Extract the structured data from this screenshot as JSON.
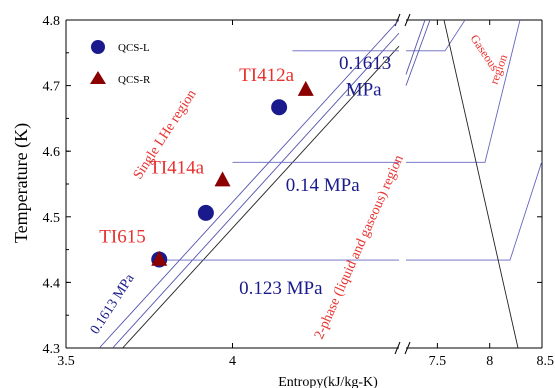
{
  "chart_data": {
    "type": "scatter",
    "title": "",
    "xlabel": "Entropy(kJ/kg-K)",
    "ylabel": "Temperature (K)",
    "ylim": [
      4.3,
      4.8
    ],
    "x_axis_break": {
      "segment_1": [
        3.5,
        4.5
      ],
      "segment_2": [
        7.2,
        8.5
      ]
    },
    "x_tick_labels": [
      "3.5",
      "4",
      "7.5",
      "8",
      "8.5"
    ],
    "x_tick_values": [
      3.5,
      4.0,
      7.5,
      8.0,
      8.5
    ],
    "y_tick_labels": [
      "4.3",
      "4.4",
      "4.5",
      "4.6",
      "4.7",
      "4.8"
    ],
    "y_tick_values": [
      4.3,
      4.4,
      4.5,
      4.6,
      4.7,
      4.8
    ],
    "legend_placement": "top-left",
    "series": [
      {
        "name": "QCS-L",
        "marker": "circle",
        "color": "#1a1a8c",
        "points": [
          [
            3.78,
            4.435
          ],
          [
            3.92,
            4.506
          ],
          [
            4.14,
            4.667
          ]
        ]
      },
      {
        "name": "QCS-R",
        "marker": "triangle",
        "color": "#8b0000",
        "points": [
          [
            3.78,
            4.436
          ],
          [
            3.97,
            4.557
          ],
          [
            4.22,
            4.695
          ]
        ]
      }
    ],
    "point_labels": [
      {
        "text": "TI615",
        "x": 3.6,
        "y": 4.461,
        "color": "#e8312f"
      },
      {
        "text": "TI414a",
        "x": 3.75,
        "y": 4.566,
        "color": "#e8312f"
      },
      {
        "text": "TI412a",
        "x": 4.02,
        "y": 4.707,
        "color": "#e8312f"
      }
    ],
    "isobar_labels": [
      {
        "text": "0.1613",
        "x": 4.32,
        "y": 4.725,
        "color": "#1a1a8c"
      },
      {
        "text": "MPa",
        "x": 4.34,
        "y": 4.685,
        "color": "#1a1a8c"
      },
      {
        "text": "0.14 MPa",
        "x": 4.16,
        "y": 4.539,
        "color": "#1a1a8c"
      },
      {
        "text": "0.123 MPa",
        "x": 4.02,
        "y": 4.382,
        "color": "#1a1a8c"
      }
    ],
    "rotated_labels": [
      {
        "text": "Single LHe region",
        "color": "#e8312f",
        "angle": -57
      },
      {
        "text": "2-phase (liquid and gaseous) region",
        "color": "#e8312f",
        "angle": -66
      },
      {
        "text": "0.1613 MPa",
        "color": "#1a1a8c",
        "angle": -57
      },
      {
        "text": "Gaseous",
        "color": "#e8312f",
        "angle": 56
      },
      {
        "text": "region",
        "color": "#e8312f",
        "angle": -70
      }
    ],
    "curves": [
      {
        "name": "",
        "color": "#5555b0",
        "points": [
          [
            3.6,
            4.3
          ],
          [
            4.5,
            4.8
          ]
        ]
      },
      {
        "name": "",
        "color": "#5555b0",
        "points": [
          [
            3.64,
            4.3
          ],
          [
            4.5,
            4.78
          ]
        ]
      },
      {
        "name": "",
        "color": "#222222",
        "points": [
          [
            3.67,
            4.3
          ],
          [
            4.5,
            4.76
          ]
        ]
      },
      {
        "name": "",
        "color": "#6666c0",
        "points": [
          [
            3.79,
            4.434
          ],
          [
            4.5,
            4.434
          ]
        ]
      },
      {
        "name": "",
        "color": "#6666c0",
        "points": [
          [
            4.0,
            4.583
          ],
          [
            4.5,
            4.583
          ]
        ]
      },
      {
        "name": "",
        "color": "#6666c0",
        "points": [
          [
            4.18,
            4.753
          ],
          [
            4.5,
            4.753
          ]
        ]
      }
    ]
  }
}
